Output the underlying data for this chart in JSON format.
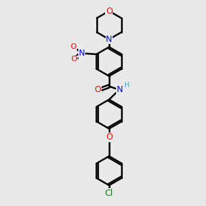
{
  "bg_color": "#e8eaea",
  "bond_color": "#000000",
  "bond_width": 1.8,
  "colors": {
    "N": "#0000ff",
    "O": "#ff0000",
    "Cl": "#008000",
    "H": "#4aadad"
  },
  "font_size": 8.5
}
